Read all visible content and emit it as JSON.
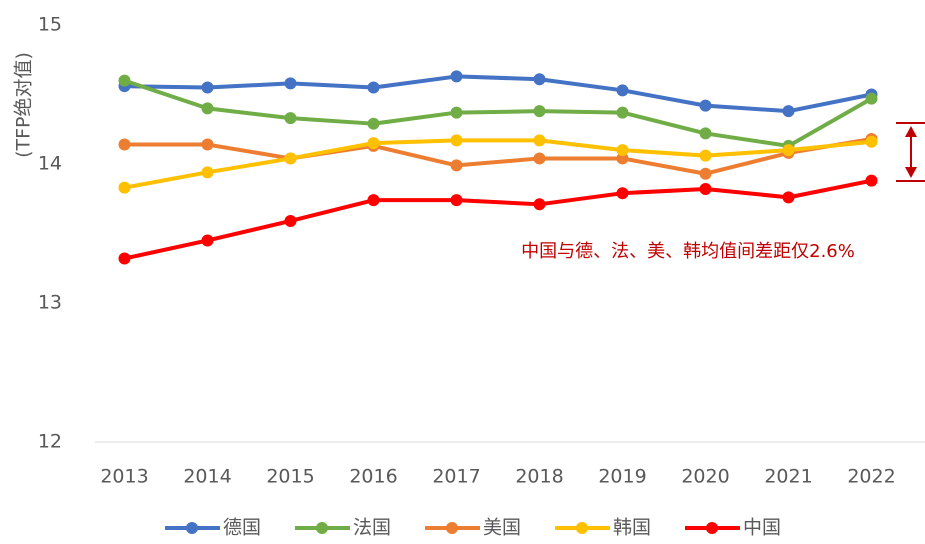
{
  "chart_data": {
    "type": "line",
    "y_label": "(TFP绝对值)",
    "annotation": "中国与德、法、美、韩均值间差距仅2.6%",
    "categories": [
      "2013",
      "2014",
      "2015",
      "2016",
      "2017",
      "2018",
      "2019",
      "2020",
      "2021",
      "2022"
    ],
    "series": [
      {
        "name": "德国",
        "color": "#4472c4",
        "values": [
          14.56,
          14.55,
          14.58,
          14.55,
          14.63,
          14.61,
          14.53,
          14.42,
          14.38,
          14.5
        ]
      },
      {
        "name": "法国",
        "color": "#70ad47",
        "values": [
          14.6,
          14.4,
          14.33,
          14.29,
          14.37,
          14.38,
          14.37,
          14.22,
          14.13,
          14.47
        ]
      },
      {
        "name": "美国",
        "color": "#ed7d31",
        "values": [
          14.14,
          14.14,
          14.04,
          14.13,
          13.99,
          14.04,
          14.04,
          13.93,
          14.08,
          14.18
        ]
      },
      {
        "name": "韩国",
        "color": "#ffc000",
        "values": [
          13.83,
          13.94,
          14.04,
          14.15,
          14.17,
          14.17,
          14.1,
          14.06,
          14.1,
          14.16
        ]
      },
      {
        "name": "中国",
        "color": "#ff0000",
        "values": [
          13.32,
          13.45,
          13.59,
          13.74,
          13.74,
          13.71,
          13.79,
          13.82,
          13.76,
          13.88
        ]
      }
    ],
    "ylim": [
      12,
      15
    ],
    "yticks": [
      12,
      13,
      14,
      15
    ],
    "grid": false,
    "legend": "bottom"
  }
}
